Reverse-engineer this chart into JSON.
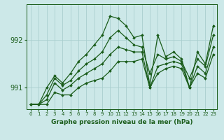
{
  "title": "Graphe pression niveau de la mer (hPa)",
  "background_color": "#cce8e8",
  "grid_color": "#aacece",
  "line_color": "#1a5c1a",
  "ylim": [
    990.55,
    992.75
  ],
  "yticks": [
    991.0,
    992.0
  ],
  "ytick_labels": [
    "991",
    "992"
  ],
  "xlim": [
    -0.5,
    23.5
  ],
  "x_labels": [
    "0",
    "1",
    "2",
    "3",
    "4",
    "5",
    "6",
    "7",
    "8",
    "9",
    "10",
    "11",
    "12",
    "13",
    "14",
    "15",
    "16",
    "17",
    "18",
    "19",
    "20",
    "21",
    "22",
    "23"
  ],
  "line1": [
    990.65,
    990.65,
    990.75,
    991.1,
    990.95,
    991.05,
    991.2,
    991.3,
    991.4,
    991.5,
    991.7,
    991.85,
    991.8,
    991.75,
    991.75,
    991.0,
    991.45,
    991.5,
    991.55,
    991.5,
    991.0,
    991.45,
    991.3,
    991.85
  ],
  "line2": [
    990.65,
    990.65,
    990.85,
    991.2,
    991.05,
    991.15,
    991.35,
    991.5,
    991.6,
    991.75,
    992.05,
    992.2,
    992.05,
    991.9,
    991.85,
    991.3,
    991.7,
    991.6,
    991.65,
    991.55,
    991.2,
    991.6,
    991.45,
    992.1
  ],
  "line3": [
    990.65,
    990.65,
    991.0,
    991.25,
    991.1,
    991.3,
    991.55,
    991.7,
    991.9,
    992.1,
    992.5,
    992.45,
    992.3,
    992.05,
    992.1,
    991.05,
    992.1,
    991.65,
    991.75,
    991.6,
    991.0,
    991.75,
    991.5,
    992.3
  ],
  "line4": [
    990.65,
    990.65,
    990.65,
    990.9,
    990.85,
    990.85,
    991.0,
    991.1,
    991.15,
    991.2,
    991.35,
    991.55,
    991.55,
    991.55,
    991.6,
    991.0,
    991.3,
    991.4,
    991.45,
    991.4,
    991.0,
    991.3,
    991.2,
    991.7
  ]
}
